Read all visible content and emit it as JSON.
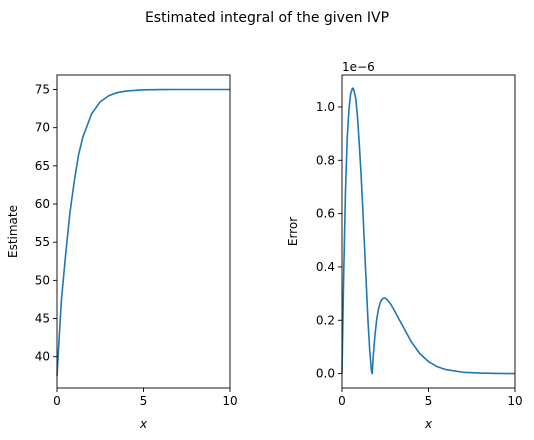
{
  "figure": {
    "title": "Estimated integral of the given IVP"
  },
  "chart_data": [
    {
      "type": "line",
      "xlabel": "x",
      "ylabel": "Estimate",
      "xlim": [
        0,
        10
      ],
      "ylim": [
        35.9,
        76.9
      ],
      "xticks": [
        0,
        5,
        10
      ],
      "yticks": [
        40,
        45,
        50,
        55,
        60,
        65,
        70,
        75
      ],
      "grid": false,
      "series": [
        {
          "color": "#1f77b4",
          "x": [
            0,
            0.25,
            0.5,
            0.75,
            1,
            1.25,
            1.5,
            2,
            2.5,
            3,
            3.5,
            4,
            5,
            6,
            7,
            8,
            9,
            10
          ],
          "y": [
            37.5,
            47.3,
            53.4,
            58.9,
            63.0,
            66.5,
            68.8,
            71.8,
            73.4,
            74.2,
            74.6,
            74.8,
            74.96,
            74.99,
            75.0,
            75.0,
            75.0,
            75.0
          ]
        }
      ]
    },
    {
      "type": "line",
      "xlabel": "x",
      "ylabel": "Error",
      "offset_text": "1e−6",
      "xlim": [
        0,
        10
      ],
      "ylim": [
        -0.054,
        1.12
      ],
      "xticks": [
        0,
        5,
        10
      ],
      "yticks": [
        0.0,
        0.2,
        0.4,
        0.6,
        0.8,
        1.0
      ],
      "grid": false,
      "series": [
        {
          "color": "#1f77b4",
          "x": [
            0,
            0.1,
            0.2,
            0.3,
            0.4,
            0.5,
            0.6,
            0.65,
            0.7,
            0.8,
            0.9,
            1.0,
            1.1,
            1.2,
            1.3,
            1.4,
            1.5,
            1.6,
            1.7,
            1.75,
            1.8,
            1.9,
            2.0,
            2.1,
            2.2,
            2.3,
            2.4,
            2.5,
            2.6,
            2.8,
            3.0,
            3.2,
            3.5,
            4.0,
            4.5,
            5.0,
            5.5,
            6.0,
            7.0,
            8.0,
            9.0,
            10.0
          ],
          "y": [
            0,
            0.38,
            0.68,
            0.88,
            0.99,
            1.05,
            1.07,
            1.07,
            1.06,
            1.03,
            0.96,
            0.86,
            0.75,
            0.62,
            0.48,
            0.34,
            0.2,
            0.09,
            0.01,
            0.0,
            0.06,
            0.14,
            0.2,
            0.24,
            0.265,
            0.278,
            0.283,
            0.283,
            0.278,
            0.262,
            0.24,
            0.215,
            0.18,
            0.12,
            0.075,
            0.045,
            0.026,
            0.015,
            0.005,
            0.002,
            0.0005,
            0.0001
          ]
        }
      ]
    }
  ]
}
